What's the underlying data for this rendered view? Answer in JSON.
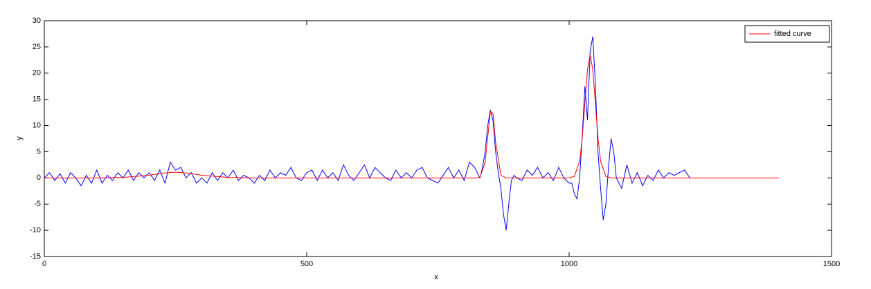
{
  "chart_data": {
    "type": "line",
    "xlabel": "x",
    "ylabel": "y",
    "xlim": [
      0,
      1500
    ],
    "xticks": [
      0,
      500,
      1000,
      1500
    ],
    "ylim": [
      -15,
      30
    ],
    "yticks": [
      -15,
      -10,
      -5,
      0,
      5,
      10,
      15,
      20,
      25,
      30
    ],
    "grid": false,
    "legend": "northeast",
    "series": [
      {
        "color": "#0000ff",
        "x": [
          0,
          10,
          20,
          30,
          40,
          50,
          60,
          70,
          80,
          90,
          100,
          110,
          120,
          130,
          140,
          150,
          160,
          170,
          180,
          190,
          200,
          210,
          220,
          230,
          240,
          250,
          260,
          270,
          280,
          290,
          300,
          310,
          320,
          330,
          340,
          350,
          360,
          370,
          380,
          390,
          400,
          410,
          420,
          430,
          440,
          450,
          460,
          470,
          480,
          490,
          500,
          510,
          520,
          530,
          540,
          550,
          560,
          570,
          580,
          590,
          600,
          610,
          620,
          630,
          640,
          650,
          660,
          670,
          680,
          690,
          700,
          710,
          720,
          730,
          740,
          750,
          760,
          770,
          780,
          790,
          800,
          810,
          820,
          825,
          830,
          835,
          840,
          845,
          850,
          855,
          860,
          865,
          870,
          875,
          880,
          885,
          890,
          895,
          900,
          910,
          920,
          930,
          940,
          950,
          960,
          970,
          980,
          990,
          1000,
          1005,
          1010,
          1015,
          1020,
          1025,
          1030,
          1035,
          1040,
          1045,
          1050,
          1055,
          1060,
          1065,
          1070,
          1075,
          1080,
          1085,
          1090,
          1100,
          1110,
          1120,
          1130,
          1140,
          1150,
          1160,
          1170,
          1180,
          1190,
          1200,
          1210,
          1220,
          1230
        ],
        "values": [
          0,
          1,
          -0.5,
          0.8,
          -1,
          1,
          0,
          -1.5,
          0.5,
          -1,
          1.5,
          -1,
          0.5,
          -0.5,
          1,
          0,
          1.5,
          -0.5,
          1,
          0,
          1,
          -0.5,
          1.5,
          -1,
          3,
          1.5,
          2,
          0,
          1,
          -1,
          0,
          -1,
          1,
          -0.5,
          1,
          0,
          1.5,
          -0.5,
          0.5,
          0,
          -1,
          0.5,
          -0.5,
          1.5,
          0,
          1,
          0.5,
          2,
          0,
          -0.5,
          1,
          1.5,
          -0.5,
          1.5,
          0,
          1,
          -0.5,
          2.5,
          0.5,
          -0.5,
          1,
          2.5,
          0,
          2,
          1,
          0,
          -0.5,
          1.5,
          0,
          1,
          0,
          1.5,
          2,
          0,
          -0.5,
          -1,
          0.5,
          2,
          0,
          1.5,
          -0.5,
          3,
          2,
          1,
          0,
          2,
          5,
          10,
          13,
          11,
          5,
          1,
          -2,
          -7,
          -10,
          -5,
          -0.5,
          0.5,
          0,
          -0.5,
          1.5,
          0.5,
          2,
          0,
          1,
          -0.5,
          2,
          0,
          -1,
          -1,
          -3,
          -4,
          0,
          8,
          17.5,
          11,
          24,
          27,
          18,
          5,
          -2,
          -8,
          -5,
          2,
          7.5,
          5,
          0,
          -2,
          2.5,
          -1,
          1,
          -1.5,
          0.5,
          -0.5,
          1.5,
          0,
          1,
          0.5,
          1,
          1.5,
          0
        ]
      },
      {
        "name": "fitted curve",
        "color": "#ff0000",
        "x": [
          0,
          50,
          100,
          150,
          200,
          225,
          250,
          275,
          300,
          350,
          400,
          500,
          600,
          700,
          800,
          820,
          830,
          840,
          845,
          850,
          855,
          860,
          870,
          880,
          900,
          1000,
          1010,
          1020,
          1025,
          1030,
          1035,
          1040,
          1045,
          1050,
          1055,
          1060,
          1070,
          1080,
          1100,
          1200,
          1300,
          1400
        ],
        "values": [
          0,
          0,
          0,
          0.1,
          0.5,
          0.9,
          1.1,
          0.9,
          0.5,
          0.1,
          0,
          0,
          0,
          0,
          0,
          0,
          0.1,
          3,
          7.9,
          12.7,
          12.2,
          6.8,
          0.5,
          0,
          0,
          0,
          0.3,
          3.2,
          7.6,
          14.3,
          20.7,
          23.5,
          20.7,
          14.3,
          7.6,
          3.2,
          0.3,
          0,
          0,
          0,
          0,
          0
        ]
      }
    ]
  }
}
